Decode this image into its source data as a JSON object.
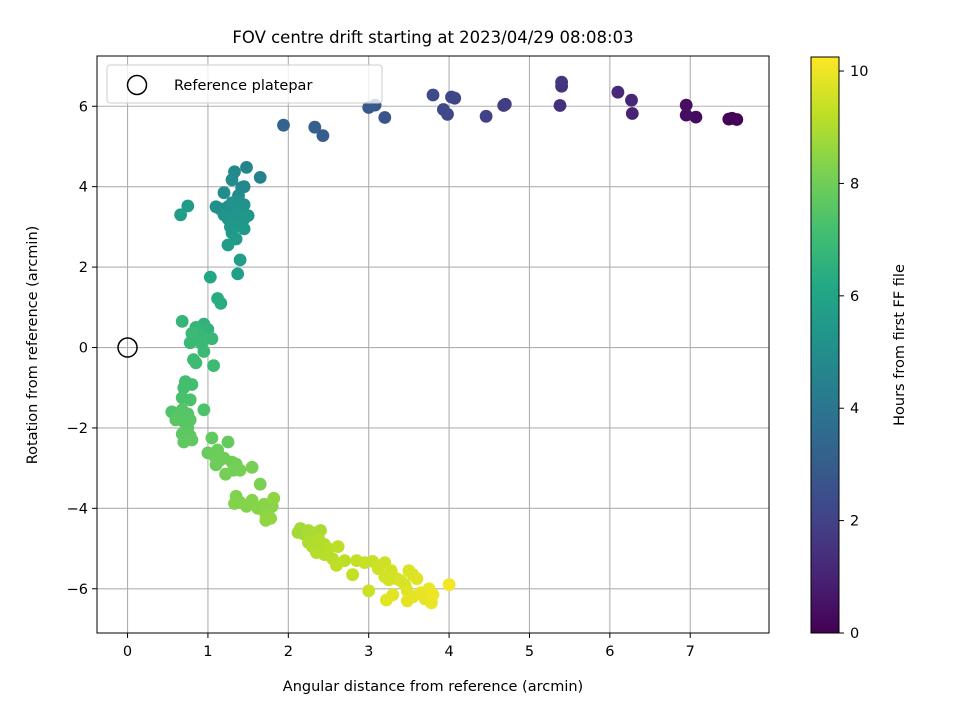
{
  "chart_data": {
    "type": "scatter",
    "title": "FOV centre drift starting at 2023/04/29 08:08:03",
    "xlabel": "Angular distance from reference (arcmin)",
    "ylabel": "Rotation from reference (arcmin)",
    "xlim": [
      -0.38,
      7.98
    ],
    "ylim": [
      -7.1,
      7.25
    ],
    "xticks": [
      0,
      1,
      2,
      3,
      4,
      5,
      6,
      7
    ],
    "yticks": [
      -6,
      -4,
      -2,
      0,
      2,
      4,
      6
    ],
    "grid": true,
    "legend": {
      "position": "top-left",
      "entries": [
        "Reference platepar"
      ]
    },
    "reference_point": {
      "x": 0,
      "y": 0,
      "label": "Reference platepar"
    },
    "colorbar": {
      "label": "Hours from first FF file",
      "colormap": "viridis",
      "range": [
        0,
        10.25
      ],
      "ticks": [
        0,
        2,
        4,
        6,
        8,
        10
      ]
    },
    "series": [
      {
        "points": [
          [
            7.58,
            5.67,
            0.05
          ],
          [
            7.48,
            5.68,
            0.1
          ],
          [
            7.52,
            5.7,
            0.12
          ],
          [
            7.07,
            5.73,
            0.3
          ],
          [
            6.95,
            5.78,
            0.35
          ],
          [
            6.95,
            6.03,
            0.4
          ],
          [
            6.28,
            5.82,
            1.0
          ],
          [
            6.27,
            6.15,
            1.1
          ],
          [
            6.1,
            6.35,
            1.2
          ],
          [
            5.38,
            6.02,
            1.4
          ],
          [
            5.4,
            6.5,
            1.5
          ],
          [
            5.4,
            6.6,
            1.6
          ],
          [
            4.7,
            6.05,
            1.8
          ],
          [
            4.68,
            6.02,
            1.85
          ],
          [
            4.46,
            5.75,
            2.0
          ],
          [
            4.07,
            6.2,
            2.1
          ],
          [
            4.03,
            6.23,
            2.15
          ],
          [
            3.98,
            5.8,
            2.2
          ],
          [
            3.93,
            5.92,
            2.25
          ],
          [
            3.8,
            6.28,
            2.3
          ],
          [
            3.2,
            5.72,
            2.7
          ],
          [
            3.08,
            6.03,
            2.8
          ],
          [
            3.0,
            5.97,
            2.85
          ],
          [
            2.43,
            5.27,
            3.0
          ],
          [
            2.33,
            5.48,
            3.1
          ],
          [
            1.94,
            5.53,
            3.3
          ],
          [
            1.65,
            4.23,
            4.5
          ],
          [
            1.48,
            4.48,
            4.6
          ],
          [
            1.45,
            4.0,
            4.7
          ],
          [
            1.42,
            3.98,
            4.75
          ],
          [
            1.33,
            4.37,
            4.8
          ],
          [
            1.3,
            4.17,
            4.85
          ],
          [
            1.38,
            3.78,
            4.9
          ],
          [
            1.2,
            3.85,
            5.0
          ],
          [
            1.1,
            3.5,
            5.05
          ],
          [
            1.15,
            3.45,
            5.1
          ],
          [
            1.25,
            3.5,
            5.1
          ],
          [
            1.3,
            3.6,
            5.15
          ],
          [
            1.35,
            3.55,
            5.15
          ],
          [
            1.4,
            3.6,
            5.2
          ],
          [
            1.45,
            3.55,
            5.2
          ],
          [
            1.2,
            3.3,
            5.25
          ],
          [
            1.25,
            3.2,
            5.25
          ],
          [
            1.3,
            3.25,
            5.3
          ],
          [
            1.35,
            3.35,
            5.3
          ],
          [
            1.4,
            3.3,
            5.35
          ],
          [
            1.45,
            3.2,
            5.35
          ],
          [
            1.5,
            3.28,
            5.4
          ],
          [
            1.32,
            3.1,
            5.4
          ],
          [
            1.28,
            3.0,
            5.45
          ],
          [
            1.38,
            3.05,
            5.45
          ],
          [
            1.45,
            2.95,
            5.5
          ],
          [
            1.3,
            2.85,
            5.5
          ],
          [
            1.35,
            2.7,
            5.55
          ],
          [
            1.25,
            2.55,
            5.6
          ],
          [
            0.75,
            3.52,
            5.6
          ],
          [
            0.66,
            3.3,
            5.65
          ],
          [
            1.4,
            2.18,
            5.7
          ],
          [
            1.37,
            1.83,
            5.8
          ],
          [
            1.03,
            1.75,
            6.1
          ],
          [
            1.12,
            1.22,
            6.3
          ],
          [
            1.16,
            1.1,
            6.35
          ],
          [
            0.95,
            0.58,
            6.6
          ],
          [
            1.0,
            0.45,
            6.65
          ],
          [
            0.68,
            0.65,
            6.7
          ],
          [
            0.85,
            0.5,
            6.75
          ],
          [
            0.9,
            0.32,
            6.8
          ],
          [
            1.05,
            0.22,
            6.8
          ],
          [
            0.92,
            0.1,
            6.85
          ],
          [
            0.78,
            0.12,
            6.85
          ],
          [
            0.8,
            0.35,
            6.9
          ],
          [
            0.95,
            -0.1,
            6.9
          ],
          [
            1.07,
            -0.45,
            6.95
          ],
          [
            0.82,
            -0.3,
            7.0
          ],
          [
            0.85,
            -0.38,
            7.0
          ],
          [
            0.72,
            -0.85,
            7.1
          ],
          [
            0.8,
            -0.92,
            7.15
          ],
          [
            0.7,
            -1.0,
            7.2
          ],
          [
            0.68,
            -1.25,
            7.25
          ],
          [
            0.78,
            -1.3,
            7.3
          ],
          [
            0.95,
            -1.55,
            7.35
          ],
          [
            0.55,
            -1.6,
            7.4
          ],
          [
            0.62,
            -1.72,
            7.45
          ],
          [
            0.68,
            -1.55,
            7.5
          ],
          [
            0.75,
            -1.65,
            7.5
          ],
          [
            0.78,
            -1.8,
            7.55
          ],
          [
            0.7,
            -1.85,
            7.55
          ],
          [
            0.6,
            -1.8,
            7.6
          ],
          [
            0.75,
            -2.0,
            7.6
          ],
          [
            0.68,
            -2.15,
            7.65
          ],
          [
            0.78,
            -2.2,
            7.65
          ],
          [
            0.7,
            -2.35,
            7.7
          ],
          [
            0.8,
            -2.3,
            7.7
          ],
          [
            1.05,
            -2.25,
            7.75
          ],
          [
            1.25,
            -2.35,
            7.8
          ],
          [
            1.0,
            -2.62,
            7.85
          ],
          [
            1.08,
            -2.7,
            7.9
          ],
          [
            1.12,
            -2.55,
            7.9
          ],
          [
            1.15,
            -2.8,
            7.95
          ],
          [
            1.1,
            -2.92,
            7.95
          ],
          [
            1.2,
            -2.75,
            8.0
          ],
          [
            1.3,
            -2.85,
            8.0
          ],
          [
            1.35,
            -2.9,
            8.05
          ],
          [
            1.32,
            -3.05,
            8.05
          ],
          [
            1.22,
            -3.15,
            8.1
          ],
          [
            1.4,
            -3.05,
            8.1
          ],
          [
            1.55,
            -2.98,
            8.15
          ],
          [
            1.65,
            -3.4,
            8.2
          ],
          [
            1.35,
            -3.7,
            8.25
          ],
          [
            1.4,
            -3.85,
            8.3
          ],
          [
            1.33,
            -3.88,
            8.3
          ],
          [
            1.48,
            -3.95,
            8.35
          ],
          [
            1.55,
            -3.8,
            8.35
          ],
          [
            1.62,
            -4.0,
            8.4
          ],
          [
            1.7,
            -3.9,
            8.4
          ],
          [
            1.75,
            -4.05,
            8.45
          ],
          [
            1.8,
            -3.95,
            8.45
          ],
          [
            1.72,
            -4.15,
            8.5
          ],
          [
            1.82,
            -3.75,
            8.5
          ],
          [
            1.78,
            -4.25,
            8.55
          ],
          [
            1.72,
            -4.3,
            8.55
          ],
          [
            2.15,
            -4.5,
            8.8
          ],
          [
            2.12,
            -4.6,
            8.85
          ],
          [
            2.2,
            -4.65,
            8.85
          ],
          [
            2.25,
            -4.55,
            8.9
          ],
          [
            2.3,
            -4.7,
            8.9
          ],
          [
            2.35,
            -4.6,
            8.95
          ],
          [
            2.4,
            -4.55,
            8.95
          ],
          [
            2.25,
            -4.85,
            9.0
          ],
          [
            2.3,
            -4.95,
            9.0
          ],
          [
            2.38,
            -4.78,
            9.05
          ],
          [
            2.45,
            -4.9,
            9.05
          ],
          [
            2.35,
            -5.1,
            9.1
          ],
          [
            2.45,
            -5.15,
            9.1
          ],
          [
            2.5,
            -5.0,
            9.15
          ],
          [
            2.55,
            -5.25,
            9.15
          ],
          [
            2.62,
            -4.95,
            9.2
          ],
          [
            2.7,
            -5.3,
            9.2
          ],
          [
            2.6,
            -5.42,
            9.25
          ],
          [
            2.85,
            -5.3,
            9.3
          ],
          [
            2.8,
            -5.65,
            9.3
          ],
          [
            2.95,
            -5.35,
            9.35
          ],
          [
            3.05,
            -5.32,
            9.4
          ],
          [
            3.0,
            -6.05,
            9.45
          ],
          [
            3.2,
            -5.35,
            9.5
          ],
          [
            3.12,
            -5.5,
            9.5
          ],
          [
            3.2,
            -5.7,
            9.55
          ],
          [
            3.28,
            -5.55,
            9.55
          ],
          [
            3.25,
            -5.78,
            9.6
          ],
          [
            3.35,
            -5.75,
            9.6
          ],
          [
            3.4,
            -5.8,
            9.65
          ],
          [
            3.45,
            -5.9,
            9.65
          ],
          [
            3.5,
            -5.55,
            9.7
          ],
          [
            3.55,
            -5.65,
            9.7
          ],
          [
            3.6,
            -5.75,
            9.75
          ],
          [
            3.48,
            -6.05,
            9.75
          ],
          [
            3.3,
            -6.15,
            9.8
          ],
          [
            3.22,
            -6.28,
            9.8
          ],
          [
            3.48,
            -6.3,
            9.85
          ],
          [
            3.55,
            -6.2,
            9.85
          ],
          [
            3.65,
            -6.1,
            9.9
          ],
          [
            3.7,
            -6.25,
            9.9
          ],
          [
            3.75,
            -6.0,
            9.95
          ],
          [
            3.78,
            -6.35,
            9.95
          ],
          [
            3.8,
            -6.15,
            10.0
          ],
          [
            4.0,
            -5.9,
            10.1
          ]
        ]
      }
    ]
  }
}
